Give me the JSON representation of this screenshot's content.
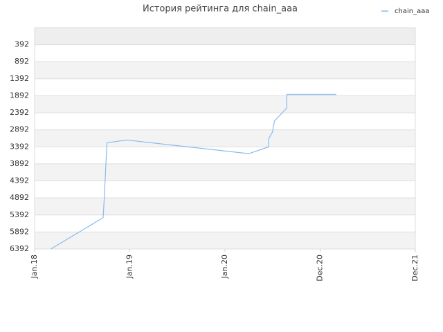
{
  "chart_data": {
    "type": "line",
    "title": "История рейтинга для chain_aaa",
    "x": [
      2018.17,
      2018.72,
      2018.73,
      2018.76,
      2018.97,
      2020.25,
      2020.46,
      2020.46,
      2020.5,
      2020.52,
      2020.65,
      2020.65,
      2021.17
    ],
    "series": [
      {
        "name": "chain_aaa",
        "color": "#88bbee",
        "values": [
          6392,
          5472,
          4992,
          3272,
          3192,
          3592,
          3392,
          3152,
          2952,
          2632,
          2252,
          1852,
          1852
        ]
      }
    ],
    "xlim": [
      2018,
      2022
    ],
    "xticks": [
      {
        "value": 2018,
        "label": "Jan.18"
      },
      {
        "value": 2019,
        "label": "Jan.19"
      },
      {
        "value": 2020,
        "label": "Jan.20"
      },
      {
        "value": 2021,
        "label": "Dec.20"
      },
      {
        "value": 2022,
        "label": "Dec.21"
      }
    ],
    "ylim": [
      -108,
      6392
    ],
    "y_inverted": true,
    "yticks": [
      392,
      892,
      1392,
      1892,
      2392,
      2892,
      3392,
      3892,
      4392,
      4892,
      5392,
      5892,
      6392
    ],
    "grid": true,
    "legend": "top-right"
  }
}
